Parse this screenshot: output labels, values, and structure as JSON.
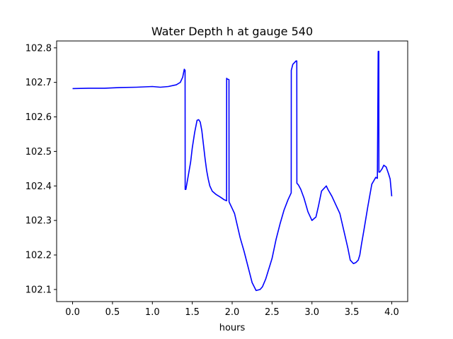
{
  "chart_data": {
    "type": "line",
    "title": "Water Depth h at gauge 540",
    "xlabel": "hours",
    "ylabel": "",
    "xlim": [
      -0.2,
      4.2
    ],
    "ylim": [
      102.065,
      102.82
    ],
    "xticks": [
      0.0,
      0.5,
      1.0,
      1.5,
      2.0,
      2.5,
      3.0,
      3.5,
      4.0
    ],
    "xtick_labels": [
      "0.0",
      "0.5",
      "1.0",
      "1.5",
      "2.0",
      "2.5",
      "3.0",
      "3.5",
      "4.0"
    ],
    "yticks": [
      102.1,
      102.2,
      102.3,
      102.4,
      102.5,
      102.6,
      102.7,
      102.8
    ],
    "ytick_labels": [
      "102.1",
      "102.2",
      "102.3",
      "102.4",
      "102.5",
      "102.6",
      "102.7",
      "102.8"
    ],
    "grid": false,
    "series": [
      {
        "color": "#0000ff",
        "x": [
          0.0,
          0.2,
          0.4,
          0.6,
          0.8,
          1.0,
          1.1,
          1.2,
          1.3,
          1.35,
          1.38,
          1.4,
          1.41,
          1.411,
          1.42,
          1.45,
          1.48,
          1.5,
          1.53,
          1.56,
          1.58,
          1.6,
          1.62,
          1.64,
          1.66,
          1.68,
          1.7,
          1.72,
          1.75,
          1.8,
          1.85,
          1.9,
          1.93,
          1.931,
          1.935,
          1.96,
          1.961,
          1.965,
          2.0,
          2.03,
          2.06,
          2.1,
          2.15,
          2.2,
          2.25,
          2.3,
          2.35,
          2.38,
          2.42,
          2.5,
          2.55,
          2.6,
          2.65,
          2.7,
          2.74,
          2.741,
          2.76,
          2.8,
          2.81,
          2.811,
          2.83,
          2.86,
          2.9,
          2.95,
          3.0,
          3.05,
          3.08,
          3.12,
          3.18,
          3.2,
          3.25,
          3.3,
          3.35,
          3.4,
          3.45,
          3.48,
          3.52,
          3.55,
          3.58,
          3.6,
          3.62,
          3.65,
          3.7,
          3.75,
          3.8,
          3.82,
          3.83,
          3.831,
          3.838,
          3.839,
          3.85,
          3.88,
          3.9,
          3.93,
          3.96,
          3.98,
          4.0
        ],
        "y": [
          102.682,
          102.683,
          102.683,
          102.685,
          102.686,
          102.688,
          102.686,
          102.688,
          102.693,
          102.7,
          102.715,
          102.738,
          102.735,
          102.39,
          102.39,
          102.43,
          102.47,
          102.51,
          102.555,
          102.59,
          102.592,
          102.585,
          102.56,
          102.52,
          102.48,
          102.445,
          102.42,
          102.4,
          102.385,
          102.375,
          102.368,
          102.36,
          102.357,
          102.712,
          102.71,
          102.708,
          102.355,
          102.352,
          102.335,
          102.32,
          102.29,
          102.25,
          102.21,
          102.165,
          102.12,
          102.097,
          102.1,
          102.108,
          102.13,
          102.19,
          102.245,
          102.29,
          102.33,
          102.36,
          102.38,
          102.735,
          102.752,
          102.762,
          102.762,
          102.408,
          102.403,
          102.39,
          102.365,
          102.325,
          102.3,
          102.31,
          102.34,
          102.385,
          102.4,
          102.39,
          102.37,
          102.345,
          102.32,
          102.27,
          102.22,
          102.185,
          102.175,
          102.178,
          102.185,
          102.2,
          102.23,
          102.27,
          102.34,
          102.405,
          102.425,
          102.422,
          102.785,
          102.79,
          102.79,
          102.44,
          102.44,
          102.45,
          102.46,
          102.455,
          102.435,
          102.42,
          102.37
        ]
      }
    ]
  }
}
